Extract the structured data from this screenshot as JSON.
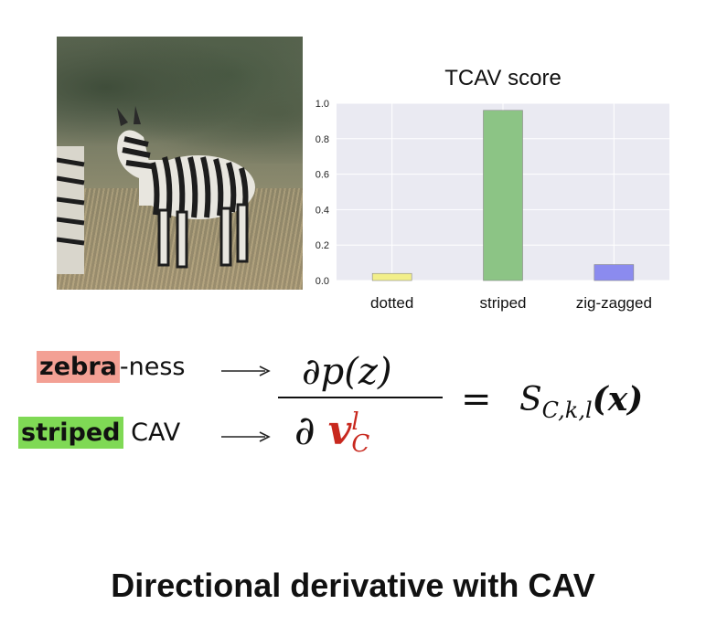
{
  "chart_data": {
    "type": "bar",
    "title": "TCAV score",
    "categories": [
      "dotted",
      "striped",
      "zig-zagged"
    ],
    "values": [
      0.04,
      0.96,
      0.09
    ],
    "colors": [
      "#f2ef8a",
      "#8cc485",
      "#8b8bef"
    ],
    "ylim": [
      0,
      1.0
    ],
    "yticks": [
      "0.0",
      "0.2",
      "0.4",
      "0.6",
      "0.8",
      "1.0"
    ],
    "grid": true,
    "plot_bg": "#eaeaf2"
  },
  "formula": {
    "term1_highlight": "zebra",
    "term1_suffix": "-ness",
    "term2_highlight": "striped",
    "term2_suffix": " CAV",
    "numerator": "∂p(z)",
    "denominator_partial": "∂",
    "denominator_var": "v",
    "denominator_sup": "l",
    "denominator_sub": "C",
    "equals": "=",
    "rhs_symbol": "S",
    "rhs_sub": "C,k,l",
    "rhs_arg": "(x)"
  },
  "caption": "Directional derivative with CAV"
}
